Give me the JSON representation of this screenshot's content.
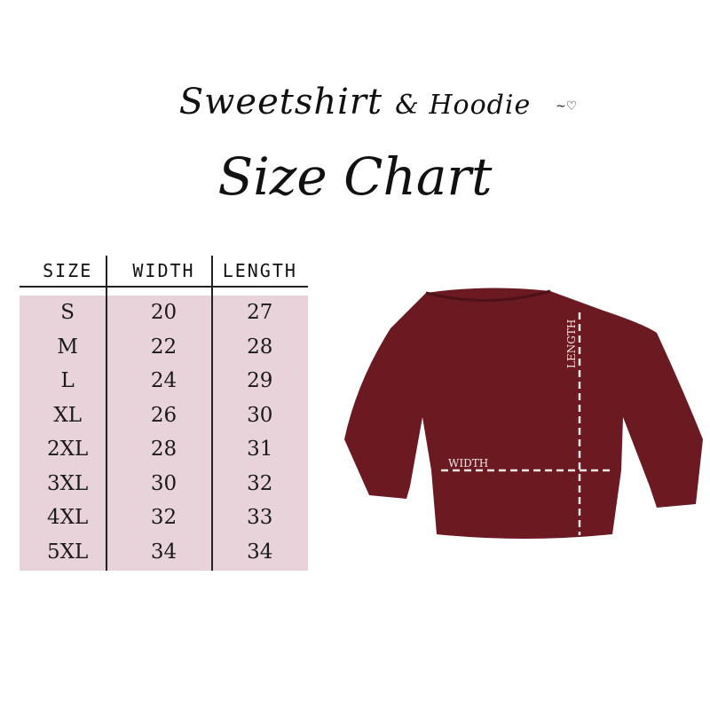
{
  "title": {
    "line1": "Sweetshirt",
    "ampersand": "& Hoodie",
    "line2": "Size Chart",
    "heart_icon": "heart-icon"
  },
  "table": {
    "headers": [
      "SIZE",
      "WIDTH",
      "LENGTH"
    ],
    "rows": [
      [
        "S",
        "20",
        "27"
      ],
      [
        "M",
        "22",
        "28"
      ],
      [
        "L",
        "24",
        "29"
      ],
      [
        "XL",
        "26",
        "30"
      ],
      [
        "2XL",
        "28",
        "31"
      ],
      [
        "3XL",
        "30",
        "32"
      ],
      [
        "4XL",
        "32",
        "33"
      ],
      [
        "5XL",
        "34",
        "34"
      ]
    ],
    "background_color": "#e9d3da"
  },
  "diagram": {
    "width_label": "WIDTH",
    "length_label": "LENGTH",
    "garment_color": "#6b1a22",
    "measure_line_color": "#f3e6e6"
  }
}
